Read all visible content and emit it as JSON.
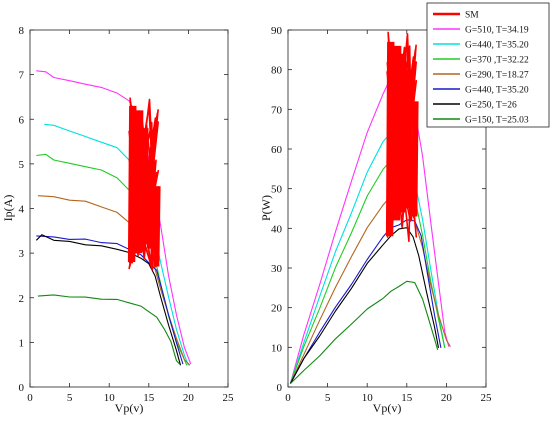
{
  "chart_data": [
    {
      "type": "line",
      "title": "",
      "xlabel": "Vp(v)",
      "ylabel": "Ip(A)",
      "xlim": [
        0,
        25
      ],
      "ylim": [
        0,
        8
      ],
      "xticks": [
        0,
        5,
        10,
        15,
        20,
        25
      ],
      "yticks": [
        0,
        1,
        2,
        3,
        4,
        5,
        6,
        7,
        8
      ],
      "grid": false,
      "series": [
        {
          "color": "#ff33ff",
          "points": [
            [
              0.8,
              7.1
            ],
            [
              2,
              7.05
            ],
            [
              3,
              6.95
            ],
            [
              5,
              6.85
            ],
            [
              7,
              6.8
            ],
            [
              9,
              6.7
            ],
            [
              11,
              6.6
            ],
            [
              12.5,
              6.4
            ],
            [
              13.5,
              6.1
            ],
            [
              14.5,
              5.6
            ],
            [
              15.5,
              4.6
            ],
            [
              16.5,
              3.6
            ],
            [
              17.5,
              2.5
            ],
            [
              18.5,
              1.6
            ],
            [
              19.5,
              0.9
            ],
            [
              20.3,
              0.5
            ]
          ]
        },
        {
          "color": "#00e0e0",
          "points": [
            [
              1.8,
              5.9
            ],
            [
              3,
              5.85
            ],
            [
              5,
              5.75
            ],
            [
              7,
              5.6
            ],
            [
              9,
              5.5
            ],
            [
              11,
              5.35
            ],
            [
              12.5,
              5.1
            ],
            [
              13.5,
              4.7
            ],
            [
              14.5,
              4.2
            ],
            [
              15.5,
              3.6
            ],
            [
              16.5,
              2.8
            ],
            [
              17.5,
              2.0
            ],
            [
              18.5,
              1.3
            ],
            [
              19.5,
              0.7
            ],
            [
              20,
              0.5
            ]
          ]
        },
        {
          "color": "#22cc22",
          "points": [
            [
              0.8,
              5.2
            ],
            [
              2,
              5.2
            ],
            [
              3,
              5.1
            ],
            [
              5,
              5.0
            ],
            [
              7,
              4.95
            ],
            [
              9,
              4.85
            ],
            [
              11,
              4.7
            ],
            [
              12.5,
              4.4
            ],
            [
              13.5,
              4.1
            ],
            [
              14.5,
              3.7
            ],
            [
              15.5,
              3.1
            ],
            [
              16.5,
              2.3
            ],
            [
              17.5,
              1.6
            ],
            [
              18.5,
              1.0
            ],
            [
              19.8,
              0.5
            ]
          ]
        },
        {
          "color": "#b5651d",
          "points": [
            [
              1,
              4.3
            ],
            [
              3,
              4.25
            ],
            [
              5,
              4.2
            ],
            [
              7,
              4.15
            ],
            [
              9,
              4.05
            ],
            [
              11,
              3.9
            ],
            [
              12.5,
              3.7
            ],
            [
              13.5,
              3.5
            ],
            [
              14.5,
              3.2
            ],
            [
              15.5,
              2.8
            ],
            [
              16.5,
              2.2
            ],
            [
              17.5,
              1.6
            ],
            [
              18.5,
              1.1
            ],
            [
              19.5,
              0.6
            ],
            [
              20.2,
              0.5
            ]
          ]
        },
        {
          "color": "#1a1acc",
          "points": [
            [
              0.8,
              3.4
            ],
            [
              3,
              3.35
            ],
            [
              5,
              3.32
            ],
            [
              7,
              3.3
            ],
            [
              9,
              3.25
            ],
            [
              11,
              3.2
            ],
            [
              12.5,
              3.1
            ],
            [
              14,
              2.95
            ],
            [
              15,
              2.8
            ],
            [
              16,
              2.6
            ],
            [
              16.8,
              2.1
            ],
            [
              17.5,
              1.6
            ],
            [
              18.5,
              1.0
            ],
            [
              19.3,
              0.5
            ]
          ]
        },
        {
          "color": "#000000",
          "points": [
            [
              0.8,
              3.3
            ],
            [
              1.5,
              3.4
            ],
            [
              3,
              3.3
            ],
            [
              5,
              3.25
            ],
            [
              7,
              3.2
            ],
            [
              9,
              3.15
            ],
            [
              11,
              3.1
            ],
            [
              12.5,
              3.0
            ],
            [
              14,
              2.9
            ],
            [
              15,
              2.75
            ],
            [
              15.8,
              2.5
            ],
            [
              16.5,
              2.0
            ],
            [
              17.5,
              1.4
            ],
            [
              18.5,
              0.8
            ],
            [
              19,
              0.5
            ]
          ]
        },
        {
          "color": "#118811",
          "points": [
            [
              1,
              2.05
            ],
            [
              3,
              2.05
            ],
            [
              5,
              2.03
            ],
            [
              7,
              2.0
            ],
            [
              9,
              1.98
            ],
            [
              11,
              1.95
            ],
            [
              12.5,
              1.9
            ],
            [
              14,
              1.8
            ],
            [
              15,
              1.7
            ],
            [
              16,
              1.55
            ],
            [
              17,
              1.3
            ],
            [
              17.8,
              1.0
            ],
            [
              18.5,
              0.6
            ],
            [
              18.9,
              0.5
            ]
          ]
        }
      ]
    },
    {
      "type": "line",
      "title": "",
      "xlabel": "Vp(v)",
      "ylabel": "P(W)",
      "xlim": [
        0,
        25
      ],
      "ylim": [
        0,
        90
      ],
      "xticks": [
        0,
        5,
        10,
        15,
        20,
        25
      ],
      "yticks": [
        0,
        10,
        20,
        30,
        40,
        50,
        60,
        70,
        80,
        90
      ],
      "grid": false,
      "legend": {
        "position": "top-right",
        "entries": [
          {
            "label": "SM",
            "color": "#ff0000"
          },
          {
            "label": "G=510, T=34.19",
            "color": "#ff33ff"
          },
          {
            "label": "G=440, T=35.20",
            "color": "#00e0e0"
          },
          {
            "label": "G=370 ,T=32.22",
            "color": "#22cc22"
          },
          {
            "label": "G=290, T=18.27",
            "color": "#b5651d"
          },
          {
            "label": "G=440, T=35.20",
            "color": "#1a1acc"
          },
          {
            "label": "G=250, T=26",
            "color": "#000000"
          },
          {
            "label": "G=150, T=25.03",
            "color": "#118811"
          }
        ]
      },
      "series": [
        {
          "color": "#ff33ff",
          "points": [
            [
              0.3,
              1
            ],
            [
              2,
              13
            ],
            [
              4,
              26
            ],
            [
              6,
              39
            ],
            [
              8,
              52
            ],
            [
              10,
              64
            ],
            [
              12,
              74
            ],
            [
              13,
              78
            ],
            [
              14,
              80
            ],
            [
              15,
              78
            ],
            [
              16,
              70
            ],
            [
              17,
              58
            ],
            [
              18,
              42
            ],
            [
              19,
              26
            ],
            [
              19.8,
              14
            ],
            [
              20.3,
              10
            ]
          ]
        },
        {
          "color": "#00e0e0",
          "points": [
            [
              0.3,
              1
            ],
            [
              2,
              11
            ],
            [
              4,
              23
            ],
            [
              6,
              34
            ],
            [
              8,
              44
            ],
            [
              10,
              54
            ],
            [
              12,
              62
            ],
            [
              13,
              64
            ],
            [
              14,
              64
            ],
            [
              15,
              61
            ],
            [
              16,
              52
            ],
            [
              17,
              42
            ],
            [
              18,
              30
            ],
            [
              19,
              18
            ],
            [
              19.8,
              10
            ]
          ]
        },
        {
          "color": "#22cc22",
          "points": [
            [
              0.3,
              1
            ],
            [
              2,
              10
            ],
            [
              4,
              20
            ],
            [
              6,
              30
            ],
            [
              8,
              39
            ],
            [
              10,
              48
            ],
            [
              12,
              55
            ],
            [
              13,
              57
            ],
            [
              14,
              57
            ],
            [
              15,
              55
            ],
            [
              16,
              48
            ],
            [
              17,
              38
            ],
            [
              18,
              27
            ],
            [
              19,
              17
            ],
            [
              19.8,
              10
            ]
          ]
        },
        {
          "color": "#b5651d",
          "points": [
            [
              0.3,
              1
            ],
            [
              2,
              8
            ],
            [
              4,
              17
            ],
            [
              6,
              25
            ],
            [
              8,
              33
            ],
            [
              10,
              40
            ],
            [
              12,
              46
            ],
            [
              13,
              48
            ],
            [
              14,
              49
            ],
            [
              15,
              48
            ],
            [
              16,
              42
            ],
            [
              17,
              35
            ],
            [
              18,
              26
            ],
            [
              19,
              18
            ],
            [
              20,
              12
            ],
            [
              20.5,
              10
            ]
          ]
        },
        {
          "color": "#1a1acc",
          "points": [
            [
              0.3,
              1
            ],
            [
              2,
              7
            ],
            [
              4,
              14
            ],
            [
              6,
              20
            ],
            [
              8,
              26
            ],
            [
              10,
              32
            ],
            [
              12,
              38
            ],
            [
              13,
              40
            ],
            [
              14,
              41
            ],
            [
              15,
              42
            ],
            [
              16,
              42
            ],
            [
              16.8,
              38
            ],
            [
              17.5,
              30
            ],
            [
              18.5,
              18
            ],
            [
              19.3,
              10
            ]
          ]
        },
        {
          "color": "#000000",
          "points": [
            [
              0.3,
              1
            ],
            [
              2,
              7
            ],
            [
              4,
              13
            ],
            [
              6,
              19
            ],
            [
              8,
              25
            ],
            [
              10,
              31
            ],
            [
              12,
              36
            ],
            [
              13,
              38
            ],
            [
              14,
              40
            ],
            [
              15,
              40
            ],
            [
              15.8,
              38
            ],
            [
              16.5,
              33
            ],
            [
              17.5,
              24
            ],
            [
              18.5,
              15
            ],
            [
              19,
              10
            ]
          ]
        },
        {
          "color": "#118811",
          "points": [
            [
              0.3,
              1
            ],
            [
              2,
              4
            ],
            [
              4,
              8
            ],
            [
              6,
              12
            ],
            [
              8,
              16
            ],
            [
              10,
              19.5
            ],
            [
              12,
              22.5
            ],
            [
              13,
              24
            ],
            [
              14,
              25.5
            ],
            [
              15,
              26.5
            ],
            [
              16,
              26.5
            ],
            [
              17,
              22
            ],
            [
              17.8,
              17
            ],
            [
              18.5,
              12
            ],
            [
              18.9,
              9.5
            ]
          ]
        }
      ],
      "sm_band": {
        "color": "#ff0000",
        "x_range": [
          12.5,
          16.2
        ],
        "y_ranges": [
          [
            38,
            87
          ],
          [
            42,
            86
          ],
          [
            44,
            84
          ],
          [
            45,
            80
          ],
          [
            43,
            72
          ]
        ]
      }
    }
  ],
  "ip_sm_band": {
    "color": "#ff0000",
    "x_range": [
      12.5,
      16.2
    ],
    "y_ranges": [
      [
        2.8,
        6.3
      ],
      [
        3.0,
        6.2
      ],
      [
        3.2,
        5.8
      ],
      [
        3.1,
        5.0
      ],
      [
        2.7,
        4.5
      ]
    ]
  }
}
